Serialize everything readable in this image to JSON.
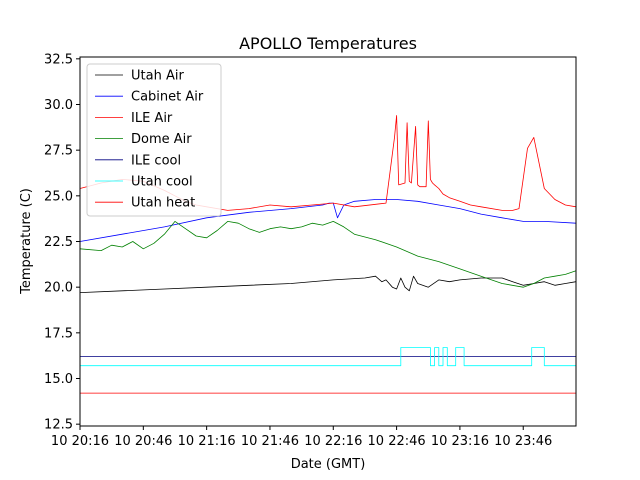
{
  "chart_data": {
    "type": "line",
    "title": "APOLLO Temperatures",
    "xlabel": "Date (GMT)",
    "ylabel": "Temperature (C)",
    "xlim": [
      0,
      235
    ],
    "ylim": [
      12.4,
      32.6
    ],
    "x_ticks": [
      {
        "t": 0,
        "label": "10 20:16"
      },
      {
        "t": 30,
        "label": "10 20:46"
      },
      {
        "t": 60,
        "label": "10 21:16"
      },
      {
        "t": 90,
        "label": "10 21:46"
      },
      {
        "t": 120,
        "label": "10 22:16"
      },
      {
        "t": 150,
        "label": "10 22:46"
      },
      {
        "t": 180,
        "label": "10 23:16"
      },
      {
        "t": 210,
        "label": "10 23:46"
      }
    ],
    "y_ticks": [
      {
        "v": 12.5,
        "label": "12.5"
      },
      {
        "v": 15.0,
        "label": "15.0"
      },
      {
        "v": 17.5,
        "label": "17.5"
      },
      {
        "v": 20.0,
        "label": "20.0"
      },
      {
        "v": 22.5,
        "label": "22.5"
      },
      {
        "v": 25.0,
        "label": "25.0"
      },
      {
        "v": 27.5,
        "label": "27.5"
      },
      {
        "v": 30.0,
        "label": "30.0"
      },
      {
        "v": 32.5,
        "label": "32.5"
      }
    ],
    "grid": false,
    "legend_position": "upper-left",
    "series": [
      {
        "name": "Utah Air",
        "color": "#000000",
        "x": [
          0,
          20,
          40,
          60,
          80,
          100,
          120,
          135,
          140,
          143,
          145,
          148,
          150,
          152,
          154,
          156,
          158,
          160,
          165,
          170,
          175,
          180,
          190,
          200,
          205,
          210,
          215,
          220,
          225,
          230,
          235
        ],
        "y": [
          19.7,
          19.8,
          19.9,
          20.0,
          20.1,
          20.2,
          20.4,
          20.5,
          20.6,
          20.3,
          20.4,
          20.0,
          19.9,
          20.5,
          20.0,
          19.8,
          20.6,
          20.2,
          20.0,
          20.4,
          20.3,
          20.4,
          20.5,
          20.5,
          20.3,
          20.1,
          20.2,
          20.3,
          20.1,
          20.2,
          20.3
        ]
      },
      {
        "name": "Cabinet Air",
        "color": "#0000ff",
        "x": [
          0,
          20,
          40,
          60,
          80,
          100,
          115,
          118,
          120,
          122,
          125,
          130,
          140,
          150,
          160,
          170,
          180,
          190,
          200,
          210,
          220,
          235
        ],
        "y": [
          22.5,
          22.9,
          23.3,
          23.8,
          24.1,
          24.3,
          24.5,
          24.6,
          24.6,
          23.8,
          24.5,
          24.7,
          24.8,
          24.8,
          24.7,
          24.5,
          24.3,
          24.0,
          23.8,
          23.6,
          23.6,
          23.5
        ]
      },
      {
        "name": "ILE Air",
        "color": "#ff0000",
        "x": [
          0,
          10,
          20,
          30,
          40,
          50,
          55,
          60,
          70,
          80,
          90,
          100,
          110,
          120,
          130,
          145,
          149,
          150,
          151,
          154,
          155,
          156,
          157,
          159,
          160,
          161,
          164,
          165,
          166,
          167,
          168,
          170,
          172,
          175,
          180,
          185,
          190,
          200,
          205,
          208,
          212,
          215,
          220,
          225,
          230,
          235
        ],
        "y": [
          25.4,
          25.7,
          25.9,
          25.8,
          25.3,
          24.7,
          24.5,
          24.4,
          24.2,
          24.3,
          24.5,
          24.4,
          24.5,
          24.6,
          24.4,
          24.6,
          28.2,
          29.4,
          25.6,
          25.7,
          29.0,
          25.8,
          25.7,
          28.8,
          25.6,
          25.5,
          25.5,
          29.1,
          25.9,
          25.7,
          25.6,
          25.4,
          25.1,
          24.9,
          24.7,
          24.5,
          24.4,
          24.2,
          24.2,
          24.3,
          27.6,
          28.2,
          25.4,
          24.8,
          24.5,
          24.4
        ]
      },
      {
        "name": "Dome Air",
        "color": "#008000",
        "x": [
          0,
          10,
          15,
          20,
          25,
          30,
          35,
          40,
          45,
          50,
          55,
          60,
          65,
          70,
          75,
          80,
          85,
          90,
          95,
          100,
          105,
          110,
          115,
          120,
          125,
          130,
          140,
          150,
          160,
          170,
          180,
          190,
          200,
          210,
          215,
          220,
          225,
          230,
          235
        ],
        "y": [
          22.1,
          22.0,
          22.3,
          22.2,
          22.5,
          22.1,
          22.4,
          22.9,
          23.6,
          23.2,
          22.8,
          22.7,
          23.1,
          23.6,
          23.5,
          23.2,
          23.0,
          23.2,
          23.3,
          23.2,
          23.3,
          23.5,
          23.4,
          23.6,
          23.3,
          22.9,
          22.6,
          22.2,
          21.7,
          21.4,
          21.0,
          20.6,
          20.2,
          20.0,
          20.2,
          20.5,
          20.6,
          20.7,
          20.9
        ]
      },
      {
        "name": "ILE cool",
        "color": "#000080",
        "x": [
          0,
          235
        ],
        "y": [
          16.2,
          16.2
        ]
      },
      {
        "name": "Utah cool",
        "color": "#00ffff",
        "x": [
          0,
          152,
          152,
          166,
          166,
          168,
          168,
          170,
          170,
          172,
          172,
          174,
          174,
          178,
          178,
          182,
          182,
          186,
          186,
          214,
          214,
          220,
          220,
          235
        ],
        "y": [
          15.7,
          15.7,
          16.7,
          16.7,
          15.7,
          15.7,
          16.7,
          16.7,
          15.7,
          15.7,
          16.7,
          16.7,
          15.7,
          15.7,
          16.7,
          16.7,
          15.7,
          15.7,
          15.7,
          15.7,
          16.7,
          16.7,
          15.7,
          15.7
        ]
      },
      {
        "name": "Utah heat",
        "color": "#ff0000",
        "x": [
          0,
          235
        ],
        "y": [
          14.2,
          14.2
        ]
      }
    ]
  }
}
